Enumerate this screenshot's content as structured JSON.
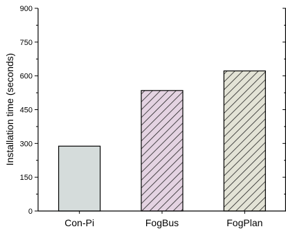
{
  "chart_data": {
    "type": "bar",
    "title": "",
    "xlabel": "",
    "ylabel": "Installation time (seconds)",
    "categories": [
      "Con-Pi",
      "FogBus",
      "FogPlan"
    ],
    "values": [
      288,
      535,
      622
    ],
    "ylim": [
      0,
      900
    ],
    "yticks": [
      0,
      150,
      300,
      450,
      600,
      750,
      900
    ],
    "grid": false,
    "bar_styles": [
      {
        "fill": "#d5dcdb",
        "hatch": "none"
      },
      {
        "fill": "#e4d3e2",
        "hatch": "diagonal",
        "hatch_color": "#222222"
      },
      {
        "fill": "#e3e3d6",
        "hatch": "diagonal",
        "hatch_color": "#222222"
      }
    ],
    "axis_color": "#000000"
  }
}
